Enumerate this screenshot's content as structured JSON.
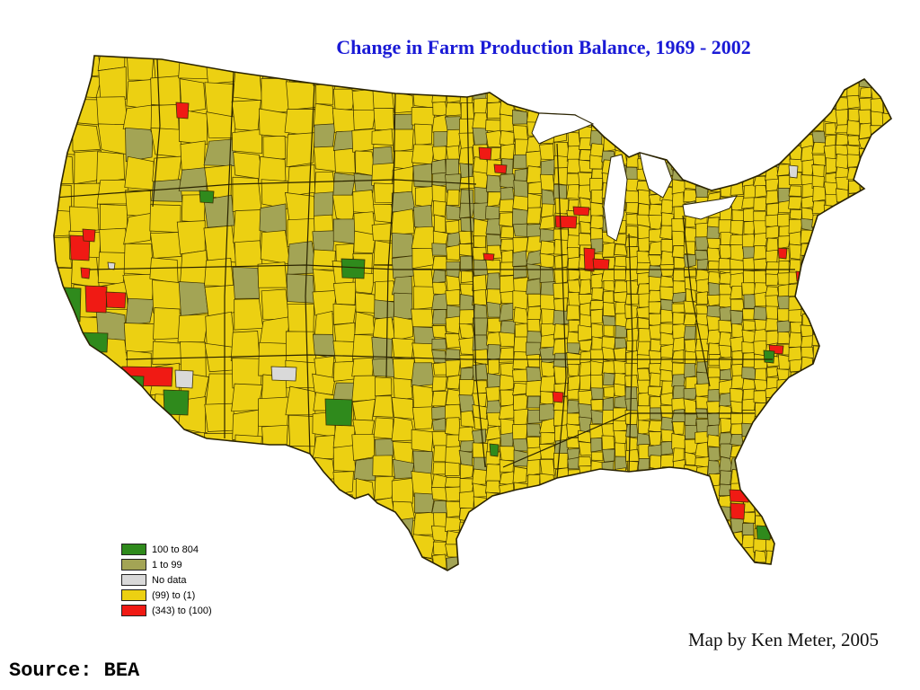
{
  "title": "Change in Farm Production Balance, 1969 - 2002",
  "legend": [
    {
      "label": "100 to 804",
      "color": "#2f8a1c"
    },
    {
      "label": "1 to 99",
      "color": "#a3a455"
    },
    {
      "label": "No data",
      "color": "#d9d9d9"
    },
    {
      "label": "(99) to (1)",
      "color": "#ecd012"
    },
    {
      "label": "(343) to (100)",
      "color": "#f01a14"
    }
  ],
  "colors": {
    "background": "#ffffff",
    "title": "#1a1ad6",
    "county_border": "#3a3000",
    "base_fill": "#ecd012"
  },
  "credit": "Map by Ken Meter, 2005",
  "source": "Source: BEA"
}
